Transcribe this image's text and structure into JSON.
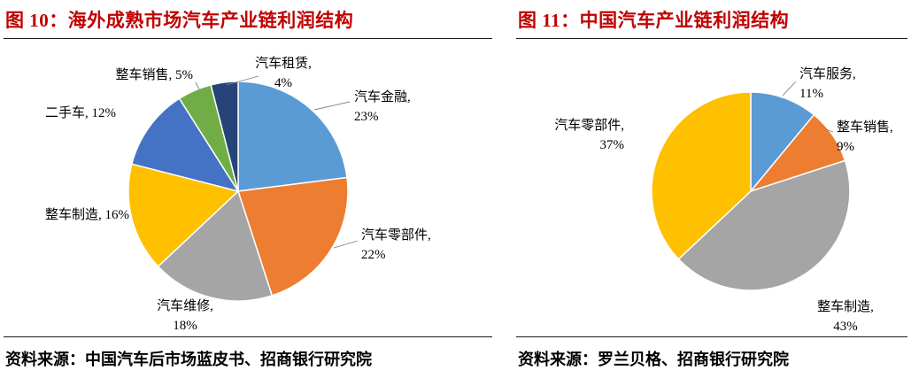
{
  "page": {
    "background": "#ffffff",
    "title_color": "#c00000",
    "rule_color": "#1a1a1a",
    "leader_line_color": "#7f7f7f"
  },
  "chart_data": [
    {
      "type": "pie",
      "title": "图 10：海外成熟市场汽车产业链利润结构",
      "source": "资料来源：中国汽车后市场蓝皮书、招商银行研究院",
      "unit": "%",
      "direction": "clockwise",
      "start_angle_deg": 0,
      "legend": "none",
      "labels_position": "outside",
      "categories": [
        "汽车金融",
        "汽车零部件",
        "汽车维修",
        "整车制造",
        "二手车",
        "整车销售",
        "汽车租赁"
      ],
      "values": [
        23,
        22,
        18,
        16,
        12,
        5,
        4
      ],
      "colors": [
        "#5b9bd5",
        "#ed7d31",
        "#a5a5a5",
        "#ffc000",
        "#4472c4",
        "#70ad47",
        "#264478"
      ],
      "label_lines": [
        [
          "汽车金融,",
          "23%"
        ],
        [
          "汽车零部件,",
          "22%"
        ],
        [
          "汽车维修,",
          "18%"
        ],
        [
          "整车制造, 16%"
        ],
        [
          "二手车, 12%"
        ],
        [
          "整车销售, 5%"
        ],
        [
          "汽车租赁,",
          "4%"
        ]
      ]
    },
    {
      "type": "pie",
      "title": "图 11：中国汽车产业链利润结构",
      "source": "资料来源：罗兰贝格、招商银行研究院",
      "unit": "%",
      "direction": "clockwise",
      "start_angle_deg": 0,
      "legend": "none",
      "labels_position": "outside",
      "categories": [
        "汽车服务",
        "整车销售",
        "整车制造",
        "汽车零部件"
      ],
      "values": [
        11,
        9,
        43,
        37
      ],
      "colors": [
        "#5b9bd5",
        "#ed7d31",
        "#a5a5a5",
        "#ffc000"
      ],
      "label_lines": [
        [
          "汽车服务,",
          "11%"
        ],
        [
          "整车销售,",
          "9%"
        ],
        [
          "整车制造,",
          "43%"
        ],
        [
          "汽车零部件,",
          "37%"
        ]
      ]
    }
  ]
}
